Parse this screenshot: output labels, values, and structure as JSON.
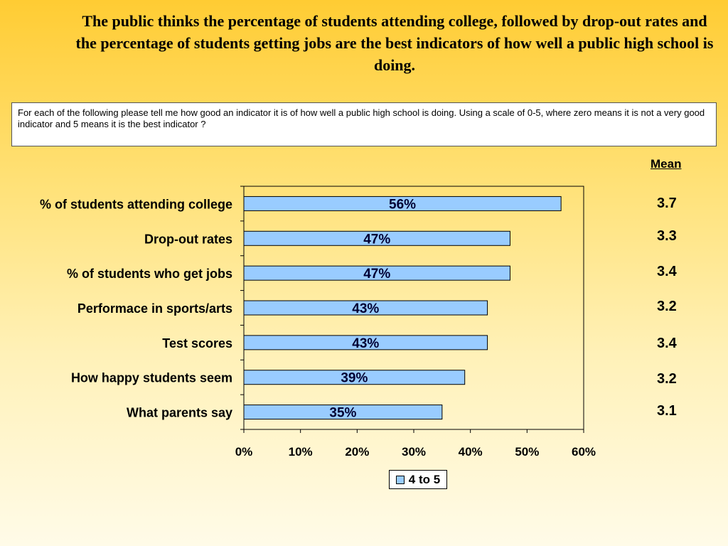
{
  "title": "The public thinks the percentage of students attending college, followed by drop-out rates and the percentage of students getting jobs are the best indicators of how well a public high school is doing.",
  "question": "For each of the following please tell me how good an indicator it is of how well a public high school is doing. Using a scale of 0-5, where zero means it is not a very good indicator and 5 means it is the best indicator ?",
  "mean_header": "Mean",
  "means": [
    "3.7",
    "3.3",
    "3.4",
    "3.2",
    "3.4",
    "3.2",
    "3.1"
  ],
  "chart_data": {
    "type": "bar",
    "orientation": "horizontal",
    "categories": [
      "% of students attending college",
      "Drop-out rates",
      "% of students who get jobs",
      "Performace in sports/arts",
      "Test scores",
      "How happy students seem",
      "What parents say"
    ],
    "series": [
      {
        "name": "4 to 5",
        "values": [
          56,
          47,
          47,
          43,
          43,
          39,
          35
        ],
        "color": "#99ccff"
      }
    ],
    "data_labels": [
      "56%",
      "47%",
      "47%",
      "43%",
      "43%",
      "39%",
      "35%"
    ],
    "xlim": [
      0,
      60
    ],
    "xticks": [
      "0%",
      "10%",
      "20%",
      "30%",
      "40%",
      "50%",
      "60%"
    ],
    "legend_position": "bottom"
  }
}
